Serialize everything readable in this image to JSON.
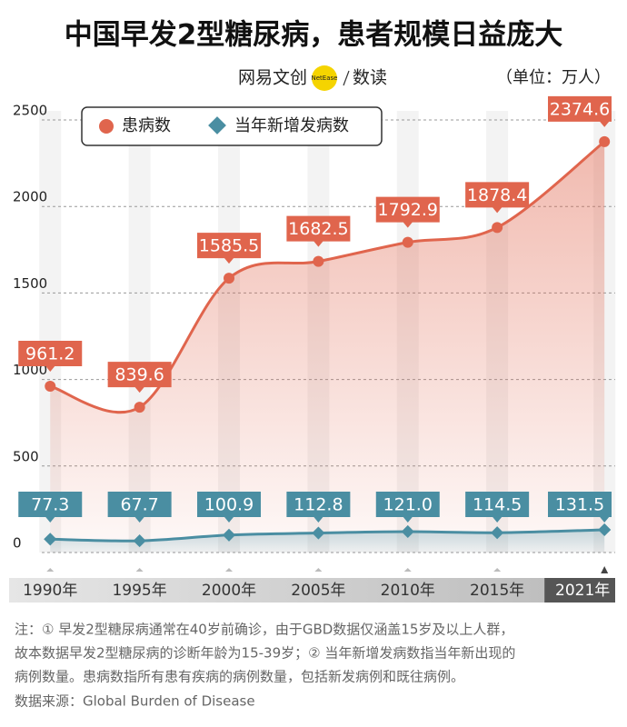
{
  "chart_data": {
    "type": "area",
    "title": "中国早发2型糖尿病，患者规模日益庞大",
    "brand": "网易文创",
    "brand_badge": "NetEase",
    "brand_section": "数读",
    "unit": "（单位：万人）",
    "x": [
      1990,
      1995,
      2000,
      2005,
      2010,
      2015,
      2021
    ],
    "series": [
      {
        "name": "患病数",
        "color": "#e0654d",
        "values": [
          961.2,
          839.6,
          1585.5,
          1682.5,
          1792.9,
          1878.4,
          2374.6
        ]
      },
      {
        "name": "当年新增发病数",
        "color": "#4a8ea2",
        "values": [
          77.3,
          67.7,
          100.9,
          112.8,
          121.0,
          114.5,
          131.5
        ],
        "value_labels": [
          "77.3",
          "67.7",
          "100.9",
          "112.8",
          "121.0",
          "114.5",
          "131.5"
        ]
      }
    ],
    "xlim": [
      1987.7,
      2021.6
    ],
    "xticks": [
      {
        "value": 1990,
        "label": "1990年"
      },
      {
        "value": 1995,
        "label": "1995年"
      },
      {
        "value": 2000,
        "label": "2000年"
      },
      {
        "value": 2005,
        "label": "2005年"
      },
      {
        "value": 2010,
        "label": "2010年"
      },
      {
        "value": 2015,
        "label": "2015年"
      },
      {
        "value": 2021,
        "label": "2021年"
      }
    ],
    "ylim": [
      0,
      2500
    ],
    "yticks": [
      0,
      500,
      1000,
      1500,
      2000,
      2500
    ],
    "grid": true,
    "notes": [
      "注：① 早发2型糖尿病通常在40岁前确诊，由于GBD数据仅涵盖15岁及以上人群，",
      "故本数据早发2型糖尿病的诊断年龄为15-39岁；② 当年新增发病数指当年新出现的",
      "病例数量。患病数指所有患有疾病的病例数量，包括新发病例和既往病例。"
    ],
    "source": "数据来源：Global Burden of Disease"
  }
}
